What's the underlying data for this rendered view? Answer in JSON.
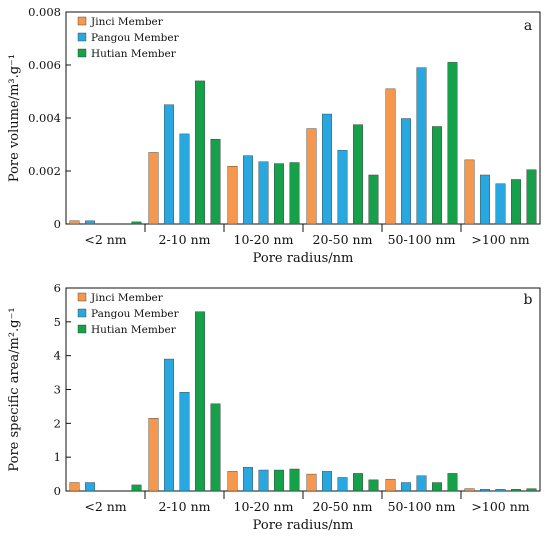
{
  "colors": {
    "jinci": "#F5974C",
    "pangou": "#29A8E0",
    "hutian": "#17A04A",
    "bar_stroke": "#333333"
  },
  "chart_data": [
    {
      "type": "bar",
      "panel": "a",
      "xlabel": "Pore radius/nm",
      "ylabel": "Pore volume/m³.g⁻¹",
      "ylim": [
        0,
        0.008
      ],
      "yticks": [
        "0",
        "0.002",
        "0.004",
        "0.006",
        "0.008"
      ],
      "grid": false,
      "legend_position": "top-left",
      "categories": [
        "<2 nm",
        "2-10 nm",
        "10-20 nm",
        "20-50 nm",
        "50-100 nm",
        ">100 nm"
      ],
      "series": [
        {
          "name": "Jinci Member",
          "color_key": "jinci",
          "slot": 0,
          "values": [
            0.00012,
            0.0027,
            0.00218,
            0.0036,
            0.0051,
            0.00242
          ]
        },
        {
          "name": "Pangou Member",
          "color_key": "pangou",
          "slot": 1,
          "values": [
            0.00012,
            0.0045,
            0.00258,
            0.00415,
            0.00398,
            0.00185
          ]
        },
        {
          "name": "Pangou Member",
          "color_key": "pangou",
          "slot": 2,
          "values": [
            null,
            0.0034,
            0.00235,
            0.00278,
            0.0059,
            0.00152
          ]
        },
        {
          "name": "Hutian Member",
          "color_key": "hutian",
          "slot": 3,
          "values": [
            null,
            0.0054,
            0.00228,
            0.00375,
            0.00368,
            0.00168
          ]
        },
        {
          "name": "Hutian Member",
          "color_key": "hutian",
          "slot": 4,
          "values": [
            8e-05,
            0.0032,
            0.00232,
            0.00185,
            0.0061,
            0.00205
          ]
        }
      ]
    },
    {
      "type": "bar",
      "panel": "b",
      "xlabel": "Pore radius/nm",
      "ylabel": "Pore specific area/m².g⁻¹",
      "ylim": [
        0,
        6
      ],
      "yticks": [
        "0",
        "1",
        "2",
        "3",
        "4",
        "5",
        "6"
      ],
      "grid": false,
      "legend_position": "top-left",
      "categories": [
        "<2 nm",
        "2-10 nm",
        "10-20 nm",
        "20-50 nm",
        "50-100 nm",
        ">100 nm"
      ],
      "series": [
        {
          "name": "Jinci Member",
          "color_key": "jinci",
          "slot": 0,
          "values": [
            0.25,
            2.15,
            0.58,
            0.5,
            0.35,
            0.07
          ]
        },
        {
          "name": "Pangou Member",
          "color_key": "pangou",
          "slot": 1,
          "values": [
            0.25,
            3.9,
            0.7,
            0.58,
            0.25,
            0.05
          ]
        },
        {
          "name": "Pangou Member",
          "color_key": "pangou",
          "slot": 2,
          "values": [
            null,
            2.92,
            0.62,
            0.4,
            0.45,
            0.05
          ]
        },
        {
          "name": "Hutian Member",
          "color_key": "hutian",
          "slot": 3,
          "values": [
            null,
            5.3,
            0.62,
            0.52,
            0.25,
            0.05
          ]
        },
        {
          "name": "Hutian Member",
          "color_key": "hutian",
          "slot": 4,
          "values": [
            0.18,
            2.58,
            0.65,
            0.33,
            0.52,
            0.07
          ]
        }
      ]
    }
  ],
  "legend": [
    {
      "label": "Jinci Member",
      "color_key": "jinci"
    },
    {
      "label": "Pangou Member",
      "color_key": "pangou"
    },
    {
      "label": "Hutian Member",
      "color_key": "hutian"
    }
  ]
}
